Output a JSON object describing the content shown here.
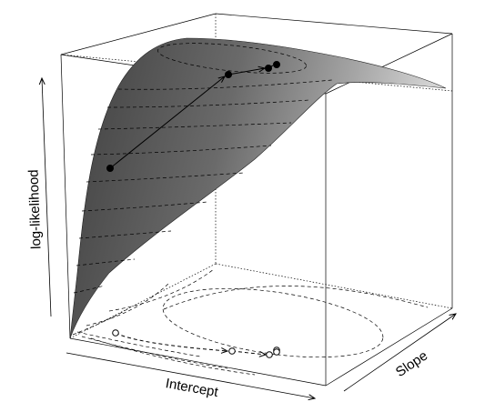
{
  "axes": {
    "z_label": "log-likelihood",
    "x_label": "Intercept",
    "y_label": "Slope"
  },
  "colors": {
    "surface_dark": "#4a4a4a",
    "surface_light": "#d8d8d8",
    "line": "#000000",
    "background": "#ffffff"
  },
  "path": {
    "description_points": 5,
    "marker_style": "filled on surface, open on floor"
  }
}
